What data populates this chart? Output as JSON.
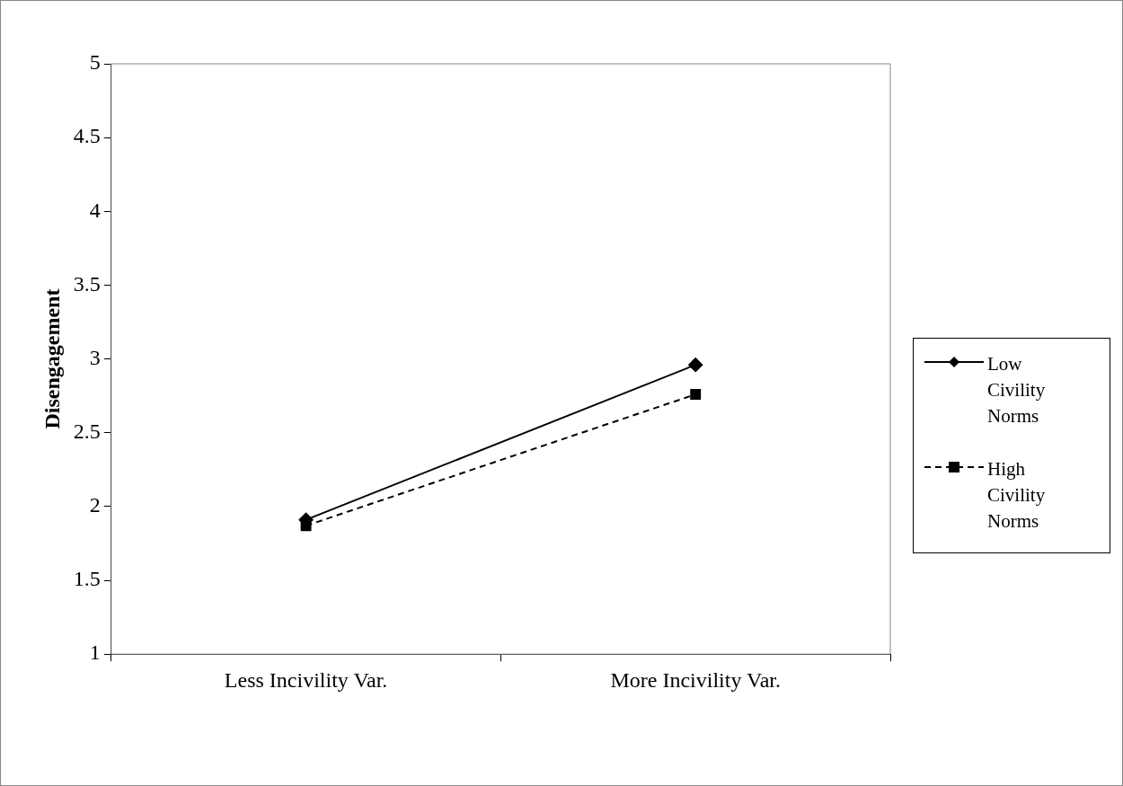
{
  "chart_data": {
    "type": "line",
    "ylabel": "Disengagement",
    "categories": [
      "Less Incivility Var.",
      "More Incivility Var."
    ],
    "ylim": [
      1,
      5
    ],
    "yticks": [
      1,
      1.5,
      2,
      2.5,
      3,
      3.5,
      4,
      4.5,
      5
    ],
    "grid": false,
    "legend": "right",
    "series": [
      {
        "name": "Low Civility Norms",
        "color": "#000000",
        "values": [
          1.91,
          2.96
        ],
        "marker": "diamond",
        "line_style": "solid"
      },
      {
        "name": "High Civility Norms",
        "color": "#000000",
        "values": [
          1.87,
          2.76
        ],
        "marker": "square",
        "line_style": "dashed"
      }
    ]
  }
}
